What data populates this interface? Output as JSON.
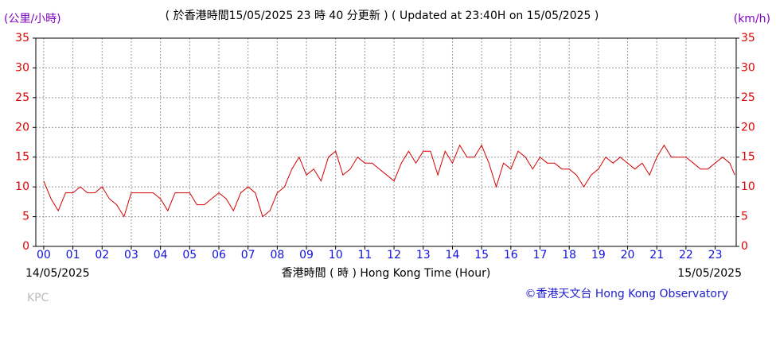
{
  "chart_data": {
    "type": "line",
    "title": "( 於香港時間15/05/2025 23 時 40 分更新 ) ( Updated at 23:40H on 15/05/2025 )",
    "y_unit_left": "(公里/小時)",
    "y_unit_right": "(km/h)",
    "x_label": "香港時間 ( 時 ) Hong Kong Time (Hour)",
    "start_date": "14/05/2025",
    "end_date": "15/05/2025",
    "station": "KPC",
    "credit": "©香港天文台 Hong Kong Observatory",
    "color": "#d40000",
    "grid": true,
    "xlim": [
      -0.27,
      23.72
    ],
    "ylim": [
      0,
      35
    ],
    "yticks": [
      0,
      5,
      10,
      15,
      20,
      25,
      30,
      35
    ],
    "xticks": [
      {
        "value": 0,
        "label": "00"
      },
      {
        "value": 1,
        "label": "01"
      },
      {
        "value": 2,
        "label": "02"
      },
      {
        "value": 3,
        "label": "03"
      },
      {
        "value": 4,
        "label": "04"
      },
      {
        "value": 5,
        "label": "05"
      },
      {
        "value": 6,
        "label": "06"
      },
      {
        "value": 7,
        "label": "07"
      },
      {
        "value": 8,
        "label": "08"
      },
      {
        "value": 9,
        "label": "09"
      },
      {
        "value": 10,
        "label": "10"
      },
      {
        "value": 11,
        "label": "11"
      },
      {
        "value": 12,
        "label": "12"
      },
      {
        "value": 13,
        "label": "13"
      },
      {
        "value": 14,
        "label": "14"
      },
      {
        "value": 15,
        "label": "15"
      },
      {
        "value": 16,
        "label": "16"
      },
      {
        "value": 17,
        "label": "17"
      },
      {
        "value": 18,
        "label": "18"
      },
      {
        "value": 19,
        "label": "19"
      },
      {
        "value": 20,
        "label": "20"
      },
      {
        "value": 21,
        "label": "21"
      },
      {
        "value": 22,
        "label": "22"
      },
      {
        "value": 23,
        "label": "23"
      }
    ],
    "x": [
      0,
      0.25,
      0.5,
      0.75,
      1,
      1.25,
      1.5,
      1.75,
      2,
      2.25,
      2.5,
      2.75,
      3,
      3.25,
      3.5,
      3.75,
      4,
      4.25,
      4.5,
      4.75,
      5,
      5.25,
      5.5,
      5.75,
      6,
      6.25,
      6.5,
      6.75,
      7,
      7.25,
      7.5,
      7.75,
      8,
      8.25,
      8.5,
      8.75,
      9,
      9.25,
      9.5,
      9.75,
      10,
      10.25,
      10.5,
      10.75,
      11,
      11.25,
      11.5,
      11.75,
      12,
      12.25,
      12.5,
      12.75,
      13,
      13.25,
      13.5,
      13.75,
      14,
      14.25,
      14.5,
      14.75,
      15,
      15.25,
      15.5,
      15.75,
      16,
      16.25,
      16.5,
      16.75,
      17,
      17.25,
      17.5,
      17.75,
      18,
      18.25,
      18.5,
      18.75,
      19,
      19.25,
      19.5,
      19.75,
      20,
      20.25,
      20.5,
      20.75,
      21,
      21.25,
      21.5,
      21.75,
      22,
      22.25,
      22.5,
      22.75,
      23,
      23.25,
      23.5,
      23.67
    ],
    "values": [
      11,
      8,
      6,
      9,
      9,
      10,
      9,
      9,
      10,
      8,
      7,
      5,
      9,
      9,
      9,
      9,
      8,
      6,
      9,
      9,
      9,
      7,
      7,
      8,
      9,
      8,
      6,
      9,
      10,
      9,
      5,
      6,
      9,
      10,
      13,
      15,
      12,
      13,
      11,
      15,
      16,
      12,
      13,
      15,
      14,
      14,
      13,
      12,
      11,
      14,
      16,
      14,
      16,
      16,
      12,
      16,
      14,
      17,
      15,
      15,
      17,
      14,
      10,
      14,
      13,
      16,
      15,
      13,
      15,
      14,
      14,
      13,
      13,
      12,
      10,
      12,
      13,
      15,
      14,
      15,
      14,
      13,
      14,
      12,
      15,
      17,
      15,
      15,
      15,
      14,
      13,
      13,
      14,
      15,
      14,
      12
    ]
  }
}
